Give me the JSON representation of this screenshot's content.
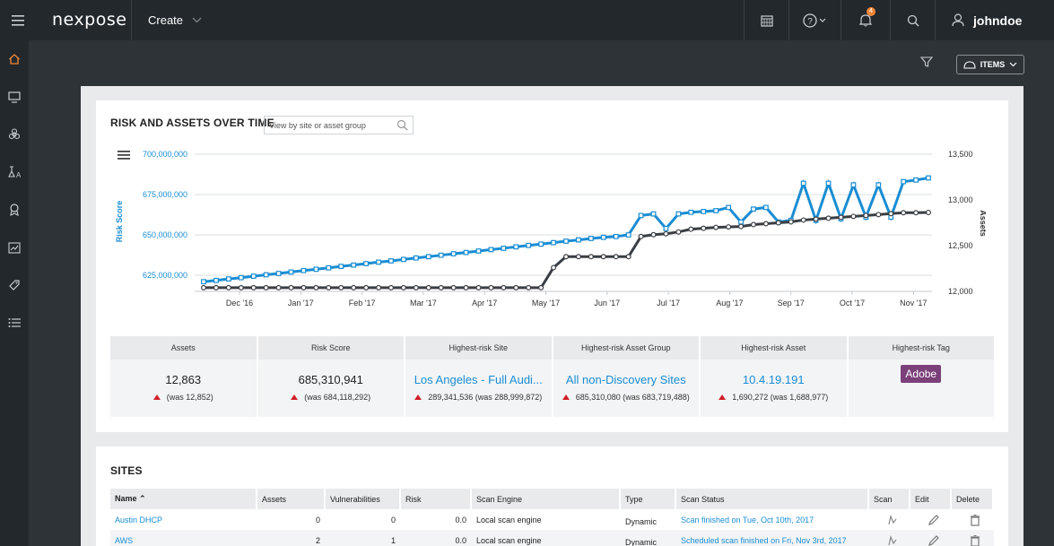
{
  "app": {
    "logo": "nexpose",
    "create_label": "Create",
    "notification_count": "4",
    "username": "johndoe",
    "items_label": "ITEMS"
  },
  "topbar_icons": [
    "menu-icon",
    "calendar-icon",
    "help-icon",
    "bell-icon",
    "search-icon",
    "user-icon"
  ],
  "sidebar": {
    "items": [
      {
        "icon": "home-icon",
        "active": true
      },
      {
        "icon": "monitor-icon",
        "active": false
      },
      {
        "icon": "biohazard-icon",
        "active": false
      },
      {
        "icon": "policy-icon",
        "active": false
      },
      {
        "icon": "award-icon",
        "active": false
      },
      {
        "icon": "report-icon",
        "active": false
      },
      {
        "icon": "tag-icon",
        "active": false
      },
      {
        "icon": "list-icon",
        "active": false
      }
    ]
  },
  "risk_card": {
    "title": "RISK AND ASSETS OVER TIME",
    "search_placeholder": "View by site or asset group"
  },
  "chart_data": {
    "type": "line",
    "title": "",
    "x_ticks": [
      "Dec '16",
      "Jan '17",
      "Feb '17",
      "Mar '17",
      "Apr '17",
      "May '17",
      "Jun '17",
      "Jul '17",
      "Aug '17",
      "Sep '17",
      "Oct '17",
      "Nov '17"
    ],
    "y_left": {
      "label": "Risk Score",
      "ticks": [
        "700,000,000",
        "675,000,000",
        "650,000,000",
        "625,000,000"
      ],
      "range": [
        615000000,
        700000000
      ]
    },
    "y_right": {
      "label": "Assets",
      "ticks": [
        "13,500",
        "13,000",
        "12,500",
        "12,000"
      ],
      "range": [
        12000,
        13500
      ]
    },
    "grid": true,
    "series": [
      {
        "name": "Risk Score",
        "axis": "left",
        "color": "#1a8dd3",
        "values": [
          621000000,
          621800000,
          622700000,
          623500000,
          624400000,
          625300000,
          626100000,
          627000000,
          627900000,
          628700000,
          629600000,
          630500000,
          631300000,
          632200000,
          633100000,
          633900000,
          634800000,
          635700000,
          636500000,
          637400000,
          638300000,
          639100000,
          640000000,
          640900000,
          641700000,
          642600000,
          643500000,
          644300000,
          645200000,
          646100000,
          646900000,
          647800000,
          648500000,
          649000000,
          650000000,
          662000000,
          663000000,
          654000000,
          663000000,
          664000000,
          664500000,
          665000000,
          667000000,
          658000000,
          666000000,
          667000000,
          658000000,
          659000000,
          682000000,
          659000000,
          682000000,
          660000000,
          681000000,
          661000000,
          681000000,
          661000000,
          683000000,
          684000000,
          685300000
        ]
      },
      {
        "name": "Assets",
        "axis": "right",
        "color": "#3a3f44",
        "values": [
          12040,
          12040,
          12040,
          12040,
          12040,
          12040,
          12040,
          12040,
          12040,
          12040,
          12040,
          12040,
          12040,
          12040,
          12040,
          12040,
          12040,
          12040,
          12040,
          12040,
          12040,
          12040,
          12040,
          12040,
          12040,
          12040,
          12040,
          12040,
          12260,
          12380,
          12380,
          12380,
          12380,
          12380,
          12380,
          12600,
          12620,
          12630,
          12650,
          12680,
          12690,
          12700,
          12705,
          12710,
          12730,
          12740,
          12750,
          12760,
          12780,
          12790,
          12800,
          12810,
          12820,
          12830,
          12840,
          12850,
          12860,
          12860,
          12863
        ]
      }
    ]
  },
  "stats": [
    {
      "header": "Assets",
      "value": "12,863",
      "was": "(was 12,852)",
      "link": false
    },
    {
      "header": "Risk Score",
      "value": "685,310,941",
      "was": "(was 684,118,292)",
      "link": false
    },
    {
      "header": "Highest-risk Site",
      "value": "Los Angeles - Full Audi...",
      "was": "289,341,536 (was 288,999,872)",
      "link": true
    },
    {
      "header": "Highest-risk Asset Group",
      "value": "All non-Discovery Sites",
      "was": "685,310,080 (was 683,719,488)",
      "link": true
    },
    {
      "header": "Highest-risk Asset",
      "value": "10.4.19.191",
      "was": "1,690,272 (was 1,688,977)",
      "link": true
    },
    {
      "header": "Highest-risk Tag",
      "value": "Adobe",
      "was": "",
      "link": false
    }
  ],
  "sites_card": {
    "title": "SITES",
    "columns": [
      "Name ⌃",
      "Assets",
      "Vulnerabilities",
      "Risk",
      "Scan Engine",
      "Type",
      "Scan Status",
      "Scan",
      "Edit",
      "Delete"
    ],
    "rows": [
      {
        "name": "Austin DHCP",
        "assets": "0",
        "vulns": "0",
        "risk": "0.0",
        "engine": "Local scan engine",
        "type": "Dynamic",
        "status": "Scan finished on Tue, Oct 10th, 2017"
      },
      {
        "name": "AWS",
        "assets": "2",
        "vulns": "1",
        "risk": "0.0",
        "engine": "Local scan engine",
        "type": "Dynamic",
        "status": "Scheduled scan finished on Fri, Nov 3rd, 2017"
      }
    ]
  }
}
